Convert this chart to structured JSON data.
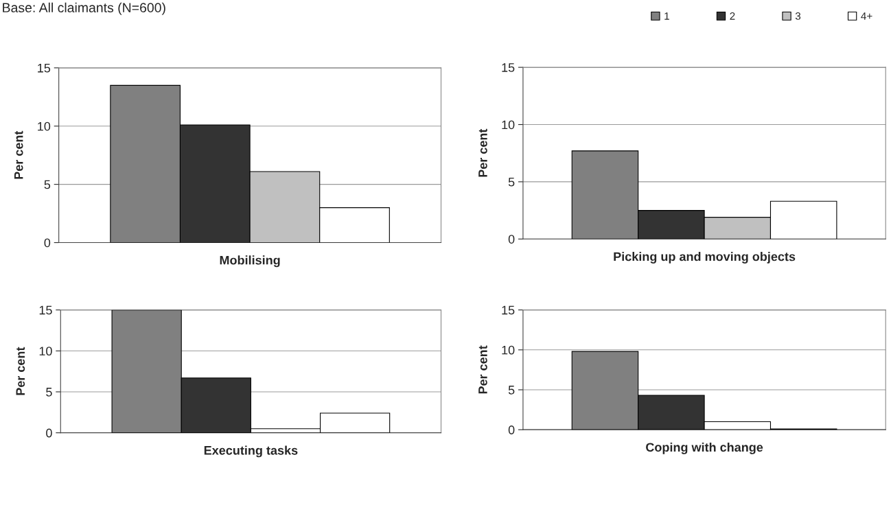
{
  "chart_data": [
    {
      "type": "bar",
      "annotations": [
        "Base: All claimants (N=600)"
      ],
      "xlabel": "Mobilising",
      "ylabel": "Per cent",
      "categories": [
        null
      ],
      "series": [
        {
          "name": "1",
          "color": "#808080",
          "values": [
            13.5
          ]
        },
        {
          "name": "2",
          "color": "#333333",
          "values": [
            10.1
          ]
        },
        {
          "name": "3",
          "color": "#c0c0c0",
          "values": [
            6.1
          ]
        },
        {
          "name": "4+",
          "color": "#ffffff",
          "values": [
            3.0
          ]
        }
      ],
      "ylim": [
        0,
        15
      ],
      "yticks": [
        0,
        5,
        10,
        15
      ],
      "grid": "y",
      "legend": "top right"
    },
    {
      "type": "bar",
      "xlabel": "Picking up and moving objects",
      "ylabel": "Per cent",
      "categories": [
        null
      ],
      "series": [
        {
          "color": "#808080",
          "values": [
            7.7
          ]
        },
        {
          "color": "#333333",
          "values": [
            2.5
          ]
        },
        {
          "color": "#c0c0c0",
          "values": [
            1.9
          ]
        },
        {
          "color": "#ffffff",
          "values": [
            3.3
          ]
        }
      ],
      "ylim": [
        0,
        15
      ],
      "yticks": [
        0,
        5,
        10,
        15
      ],
      "grid": "y"
    },
    {
      "type": "bar",
      "xlabel": "Executing tasks",
      "ylabel": "Per cent",
      "categories": [
        null
      ],
      "series": [
        {
          "color": "#808080",
          "values": [
            15
          ]
        },
        {
          "color": "#333333",
          "values": [
            6.7
          ]
        },
        {
          "color": "#ffffff",
          "values": [
            0.5
          ]
        },
        {
          "color": "#ffffff",
          "values": [
            2.4
          ]
        }
      ],
      "ylim": [
        0,
        15
      ],
      "yticks": [
        0,
        5,
        10,
        15
      ],
      "grid": "y"
    },
    {
      "type": "bar",
      "xlabel": "Coping with change",
      "ylabel": "Per cent",
      "categories": [
        null
      ],
      "series": [
        {
          "color": "#808080",
          "values": [
            9.8
          ]
        },
        {
          "color": "#333333",
          "values": [
            4.3
          ]
        },
        {
          "color": "#ffffff",
          "values": [
            1.0
          ]
        },
        {
          "color": "#ffffff",
          "values": [
            0.1
          ]
        }
      ],
      "ylim": [
        0,
        15
      ],
      "yticks": [
        0,
        5,
        10,
        15
      ],
      "grid": "y"
    }
  ]
}
